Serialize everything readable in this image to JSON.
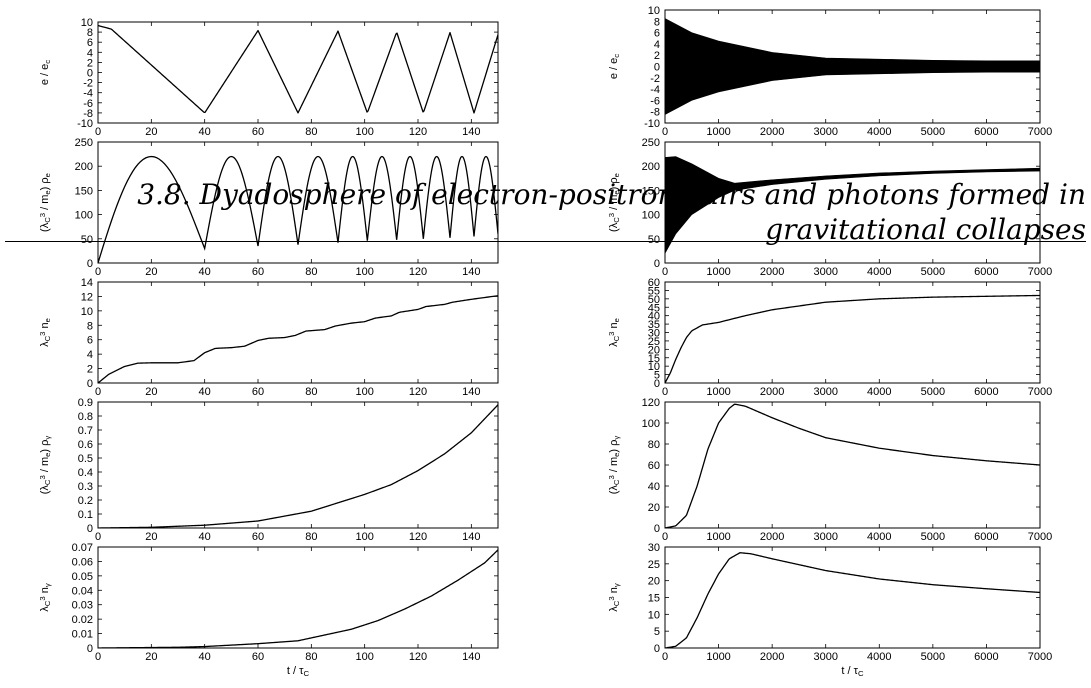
{
  "header": {
    "line1": "3.8. Dyadosphere of electron-positron pairs and photons formed in",
    "line2": "gravitational collapses"
  },
  "colors": {
    "ink": "#000000",
    "background": "#ffffff"
  },
  "chart_data": [
    {
      "type": "line",
      "column": "left",
      "ylabel": "e / e_c",
      "xlabel": "",
      "xlim": [
        0,
        150
      ],
      "ylim": [
        -10,
        10
      ],
      "xticks": [
        0,
        20,
        40,
        60,
        80,
        100,
        120,
        140
      ],
      "yticks": [
        -10,
        -8,
        -6,
        -4,
        -2,
        0,
        2,
        4,
        6,
        8,
        10
      ],
      "series": [
        {
          "kind": "piecewise",
          "points": [
            [
              0,
              9.3
            ],
            [
              5,
              8.6
            ],
            [
              40,
              -8
            ],
            [
              60,
              8.3
            ],
            [
              75,
              -8
            ],
            [
              90,
              8.2
            ],
            [
              101,
              -8
            ],
            [
              112,
              8
            ],
            [
              122,
              -8
            ],
            [
              132,
              7.9
            ],
            [
              141,
              -8
            ],
            [
              150,
              7.5
            ]
          ]
        }
      ]
    },
    {
      "type": "line",
      "column": "left",
      "ylabel": "(λ_C^3 / m_e) ρ_e",
      "xlabel": "",
      "xlim": [
        0,
        150
      ],
      "ylim": [
        0,
        250
      ],
      "xticks": [
        0,
        20,
        40,
        60,
        80,
        100,
        120,
        140
      ],
      "yticks": [
        0,
        50,
        100,
        150,
        200,
        250
      ],
      "series": [
        {
          "kind": "arches",
          "points": [
            [
              0,
              0
            ],
            [
              40,
              30
            ],
            [
              60,
              35
            ],
            [
              75,
              38
            ],
            [
              90,
              42
            ],
            [
              101,
              46
            ],
            [
              112,
              48
            ],
            [
              122,
              50
            ],
            [
              132,
              52
            ],
            [
              141,
              55
            ],
            [
              150,
              60
            ]
          ],
          "peak": 220
        }
      ]
    },
    {
      "type": "line",
      "column": "left",
      "ylabel": "λ_C^3 n_e",
      "xlabel": "",
      "xlim": [
        0,
        150
      ],
      "ylim": [
        0,
        14
      ],
      "xticks": [
        0,
        20,
        40,
        60,
        80,
        100,
        120,
        140
      ],
      "yticks": [
        0,
        2,
        4,
        6,
        8,
        10,
        12,
        14
      ],
      "series": [
        {
          "kind": "points",
          "points": [
            [
              0,
              0
            ],
            [
              4,
              1.2
            ],
            [
              10,
              2.3
            ],
            [
              15,
              2.75
            ],
            [
              20,
              2.8
            ],
            [
              30,
              2.8
            ],
            [
              36,
              3.1
            ],
            [
              40,
              4.2
            ],
            [
              44,
              4.8
            ],
            [
              50,
              4.9
            ],
            [
              55,
              5.1
            ],
            [
              60,
              5.9
            ],
            [
              64,
              6.2
            ],
            [
              70,
              6.3
            ],
            [
              74,
              6.6
            ],
            [
              78,
              7.2
            ],
            [
              85,
              7.4
            ],
            [
              89,
              7.9
            ],
            [
              95,
              8.3
            ],
            [
              100,
              8.5
            ],
            [
              104,
              9
            ],
            [
              110,
              9.3
            ],
            [
              113,
              9.8
            ],
            [
              120,
              10.2
            ],
            [
              123,
              10.6
            ],
            [
              130,
              10.9
            ],
            [
              133,
              11.2
            ],
            [
              140,
              11.6
            ],
            [
              144,
              11.8
            ],
            [
              150,
              12.1
            ]
          ]
        }
      ]
    },
    {
      "type": "line",
      "column": "left",
      "ylabel": "(λ_C^3 / m_e) ρ_γ",
      "xlabel": "",
      "xlim": [
        0,
        150
      ],
      "ylim": [
        0,
        0.9
      ],
      "xticks": [
        0,
        20,
        40,
        60,
        80,
        100,
        120,
        140
      ],
      "yticks": [
        0,
        0.1,
        0.2,
        0.3,
        0.4,
        0.5,
        0.6,
        0.7,
        0.8,
        0.9
      ],
      "series": [
        {
          "kind": "points",
          "points": [
            [
              0,
              0
            ],
            [
              20,
              0.005
            ],
            [
              40,
              0.02
            ],
            [
              60,
              0.05
            ],
            [
              80,
              0.12
            ],
            [
              100,
              0.24
            ],
            [
              110,
              0.31
            ],
            [
              120,
              0.41
            ],
            [
              130,
              0.53
            ],
            [
              140,
              0.68
            ],
            [
              150,
              0.88
            ]
          ]
        }
      ]
    },
    {
      "type": "line",
      "column": "left",
      "ylabel": "λ_C^3 n_γ",
      "xlabel": "t / τ_C",
      "xlim": [
        0,
        150
      ],
      "ylim": [
        0,
        0.07
      ],
      "xticks": [
        0,
        20,
        40,
        60,
        80,
        100,
        120,
        140
      ],
      "yticks": [
        0,
        0.01,
        0.02,
        0.03,
        0.04,
        0.05,
        0.06,
        0.07
      ],
      "series": [
        {
          "kind": "points",
          "points": [
            [
              0,
              0
            ],
            [
              30,
              0.0005
            ],
            [
              40,
              0.001
            ],
            [
              60,
              0.003
            ],
            [
              75,
              0.005
            ],
            [
              85,
              0.009
            ],
            [
              95,
              0.013
            ],
            [
              105,
              0.019
            ],
            [
              115,
              0.027
            ],
            [
              125,
              0.036
            ],
            [
              135,
              0.047
            ],
            [
              145,
              0.059
            ],
            [
              150,
              0.068
            ]
          ]
        }
      ]
    },
    {
      "type": "line",
      "column": "right",
      "ylabel": "e / e_c",
      "xlabel": "",
      "xlim": [
        0,
        7000
      ],
      "ylim": [
        -10,
        10
      ],
      "xticks": [
        0,
        1000,
        2000,
        3000,
        4000,
        5000,
        6000,
        7000
      ],
      "yticks": [
        -10,
        -8,
        -6,
        -4,
        -2,
        0,
        2,
        4,
        6,
        8,
        10
      ],
      "series": [
        {
          "kind": "band",
          "upper": [
            [
              0,
              8.5
            ],
            [
              500,
              6
            ],
            [
              1000,
              4.5
            ],
            [
              2000,
              2.5
            ],
            [
              3000,
              1.5
            ],
            [
              4000,
              1.3
            ],
            [
              5000,
              1.1
            ],
            [
              6000,
              1
            ],
            [
              7000,
              1
            ]
          ],
          "lower": [
            [
              0,
              -8.5
            ],
            [
              500,
              -6
            ],
            [
              1000,
              -4.5
            ],
            [
              2000,
              -2.5
            ],
            [
              3000,
              -1.5
            ],
            [
              4000,
              -1.3
            ],
            [
              5000,
              -1.1
            ],
            [
              6000,
              -1
            ],
            [
              7000,
              -1
            ]
          ]
        }
      ]
    },
    {
      "type": "line",
      "column": "right",
      "ylabel": "(λ_C^3 / m_e) ρ_e",
      "xlabel": "",
      "xlim": [
        0,
        7000
      ],
      "ylim": [
        0,
        250
      ],
      "xticks": [
        0,
        1000,
        2000,
        3000,
        4000,
        5000,
        6000,
        7000
      ],
      "yticks": [
        0,
        50,
        100,
        150,
        200,
        250
      ],
      "series": [
        {
          "kind": "band",
          "upper": [
            [
              0,
              218
            ],
            [
              200,
              220
            ],
            [
              500,
              205
            ],
            [
              1000,
              175
            ],
            [
              1300,
              165
            ],
            [
              2000,
              172
            ],
            [
              3000,
              180
            ],
            [
              4000,
              186
            ],
            [
              5000,
              190
            ],
            [
              6000,
              193
            ],
            [
              7000,
              196
            ]
          ],
          "lower": [
            [
              0,
              20
            ],
            [
              200,
              60
            ],
            [
              500,
              100
            ],
            [
              1000,
              135
            ],
            [
              1300,
              150
            ],
            [
              2000,
              162
            ],
            [
              3000,
              173
            ],
            [
              4000,
              180
            ],
            [
              5000,
              185
            ],
            [
              6000,
              188
            ],
            [
              7000,
              190
            ]
          ]
        }
      ]
    },
    {
      "type": "line",
      "column": "right",
      "ylabel": "λ_C^3 n_e",
      "xlabel": "",
      "xlim": [
        0,
        7000
      ],
      "ylim": [
        0,
        60
      ],
      "xticks": [
        0,
        1000,
        2000,
        3000,
        4000,
        5000,
        6000,
        7000
      ],
      "yticks": [
        0,
        5,
        10,
        15,
        20,
        25,
        30,
        35,
        40,
        45,
        50,
        55,
        60
      ],
      "series": [
        {
          "kind": "points",
          "points": [
            [
              0,
              0
            ],
            [
              100,
              6
            ],
            [
              200,
              14
            ],
            [
              300,
              21
            ],
            [
              400,
              27
            ],
            [
              500,
              31
            ],
            [
              700,
              34.5
            ],
            [
              1000,
              36
            ],
            [
              1500,
              40
            ],
            [
              2000,
              43.5
            ],
            [
              3000,
              48
            ],
            [
              4000,
              50
            ],
            [
              5000,
              51
            ],
            [
              6000,
              51.5
            ],
            [
              7000,
              52
            ]
          ]
        }
      ]
    },
    {
      "type": "line",
      "column": "right",
      "ylabel": "(λ_C^3 / m_e) ρ_γ",
      "xlabel": "",
      "xlim": [
        0,
        7000
      ],
      "ylim": [
        0,
        120
      ],
      "xticks": [
        0,
        1000,
        2000,
        3000,
        4000,
        5000,
        6000,
        7000
      ],
      "yticks": [
        0,
        20,
        40,
        60,
        80,
        100,
        120
      ],
      "series": [
        {
          "kind": "points",
          "points": [
            [
              0,
              0
            ],
            [
              200,
              2
            ],
            [
              400,
              12
            ],
            [
              600,
              40
            ],
            [
              800,
              75
            ],
            [
              1000,
              100
            ],
            [
              1200,
              114
            ],
            [
              1300,
              118
            ],
            [
              1500,
              116
            ],
            [
              2000,
              105
            ],
            [
              2500,
              95
            ],
            [
              3000,
              86
            ],
            [
              4000,
              76
            ],
            [
              5000,
              69
            ],
            [
              6000,
              64
            ],
            [
              7000,
              60
            ]
          ]
        }
      ]
    },
    {
      "type": "line",
      "column": "right",
      "ylabel": "λ_C^3 n_γ",
      "xlabel": "t / τ_C",
      "xlim": [
        0,
        7000
      ],
      "ylim": [
        0,
        30
      ],
      "xticks": [
        0,
        1000,
        2000,
        3000,
        4000,
        5000,
        6000,
        7000
      ],
      "yticks": [
        0,
        5,
        10,
        15,
        20,
        25,
        30
      ],
      "series": [
        {
          "kind": "points",
          "points": [
            [
              0,
              0
            ],
            [
              200,
              0.5
            ],
            [
              400,
              3
            ],
            [
              600,
              9
            ],
            [
              800,
              16
            ],
            [
              1000,
              22
            ],
            [
              1200,
              26.5
            ],
            [
              1400,
              28.3
            ],
            [
              1600,
              28
            ],
            [
              2000,
              26.5
            ],
            [
              3000,
              23
            ],
            [
              4000,
              20.5
            ],
            [
              5000,
              18.8
            ],
            [
              6000,
              17.6
            ],
            [
              7000,
              16.5
            ]
          ]
        }
      ]
    }
  ]
}
